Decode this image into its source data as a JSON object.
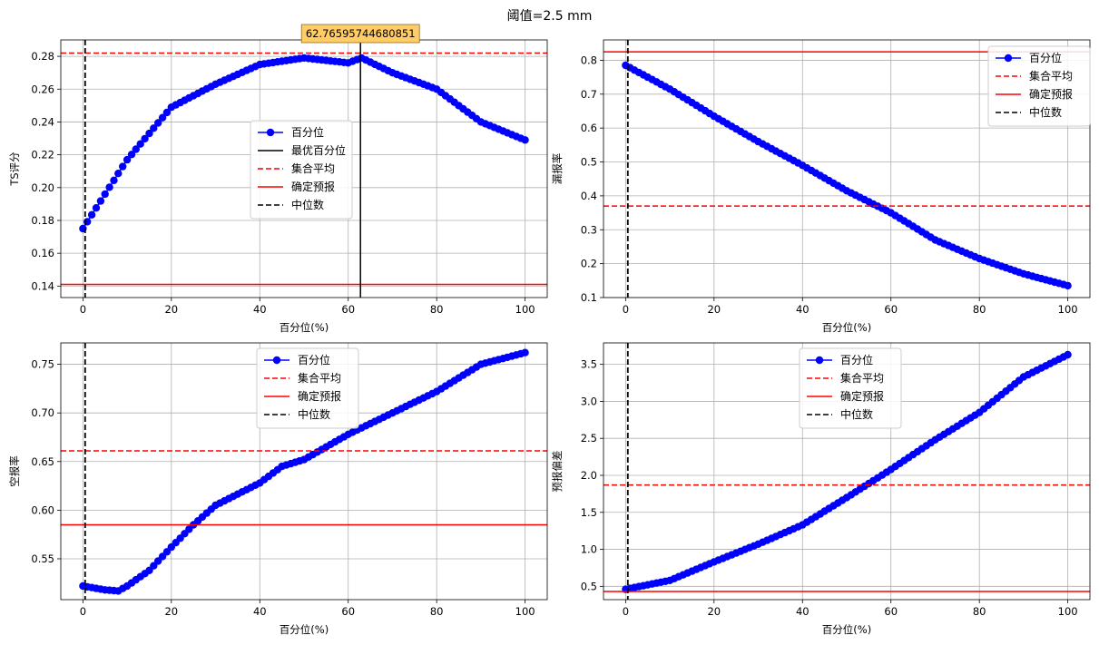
{
  "suptitle": "阈值=2.5 mm",
  "chart_data": [
    {
      "type": "line",
      "ylabel": "TS评分",
      "xlabel": "百分位(%)",
      "xlim": [
        -5,
        105
      ],
      "ylim": [
        0.133,
        0.29
      ],
      "xticks": [
        0,
        20,
        40,
        60,
        80,
        100
      ],
      "xtick_labels": [
        "0",
        "20",
        "40",
        "60",
        "80",
        "100"
      ],
      "yticks": [
        0.14,
        0.16,
        0.18,
        0.2,
        0.22,
        0.24,
        0.26,
        0.28
      ],
      "ytick_labels": [
        "0.14",
        "0.16",
        "0.18",
        "0.20",
        "0.22",
        "0.24",
        "0.26",
        "0.28"
      ],
      "grid": true,
      "legend_location": "center",
      "series": {
        "name": "百分位",
        "color": "#0000ff",
        "x": [
          0,
          10,
          20,
          30,
          40,
          50,
          60,
          63,
          70,
          80,
          90,
          100
        ],
        "y": [
          0.175,
          0.217,
          0.249,
          0.263,
          0.275,
          0.279,
          0.276,
          0.279,
          0.27,
          0.26,
          0.24,
          0.229
        ]
      },
      "reference_lines": {
        "ensemble_mean": {
          "label": "集合平均",
          "value": 0.282,
          "color": "#ff0000",
          "style": "dashed"
        },
        "deterministic": {
          "label": "确定预报",
          "value": 0.141,
          "color": "#ff0000",
          "style": "solid"
        },
        "median": {
          "label": "中位数",
          "x": 0.5,
          "color": "#000000",
          "style": "dashed"
        },
        "optimal": {
          "label": "最优百分位",
          "x": 62.76595744680851,
          "color": "#000000",
          "style": "solid"
        }
      },
      "annotation": {
        "text": "62.76595744680851",
        "background": "#ffcc66"
      },
      "legend": [
        "百分位",
        "最优百分位",
        "集合平均",
        "确定预报",
        "中位数"
      ]
    },
    {
      "type": "line",
      "ylabel": "漏报率",
      "xlabel": "百分位(%)",
      "xlim": [
        -5,
        105
      ],
      "ylim": [
        0.1,
        0.86
      ],
      "xticks": [
        0,
        20,
        40,
        60,
        80,
        100
      ],
      "xtick_labels": [
        "0",
        "20",
        "40",
        "60",
        "80",
        "100"
      ],
      "yticks": [
        0.1,
        0.2,
        0.3,
        0.4,
        0.5,
        0.6,
        0.7,
        0.8
      ],
      "ytick_labels": [
        "0.1",
        "0.2",
        "0.3",
        "0.4",
        "0.5",
        "0.6",
        "0.7",
        "0.8"
      ],
      "grid": true,
      "legend_location": "upper right",
      "series": {
        "name": "百分位",
        "color": "#0000ff",
        "x": [
          0,
          10,
          20,
          30,
          40,
          50,
          60,
          70,
          80,
          90,
          100
        ],
        "y": [
          0.785,
          0.715,
          0.635,
          0.56,
          0.49,
          0.415,
          0.35,
          0.27,
          0.215,
          0.17,
          0.135
        ]
      },
      "reference_lines": {
        "ensemble_mean": {
          "label": "集合平均",
          "value": 0.37,
          "color": "#ff0000",
          "style": "dashed"
        },
        "deterministic": {
          "label": "确定预报",
          "value": 0.825,
          "color": "#ff0000",
          "style": "solid"
        },
        "median": {
          "label": "中位数",
          "x": 0.5,
          "color": "#000000",
          "style": "dashed"
        }
      },
      "legend": [
        "百分位",
        "集合平均",
        "确定预报",
        "中位数"
      ]
    },
    {
      "type": "line",
      "ylabel": "空报率",
      "xlabel": "百分位(%)",
      "xlim": [
        -5,
        105
      ],
      "ylim": [
        0.508,
        0.772
      ],
      "xticks": [
        0,
        20,
        40,
        60,
        80,
        100
      ],
      "xtick_labels": [
        "0",
        "20",
        "40",
        "60",
        "80",
        "100"
      ],
      "yticks": [
        0.55,
        0.6,
        0.65,
        0.7,
        0.75
      ],
      "ytick_labels": [
        "0.55",
        "0.60",
        "0.65",
        "0.70",
        "0.75"
      ],
      "grid": true,
      "legend_location": "upper center",
      "series": {
        "name": "百分位",
        "color": "#0000ff",
        "x": [
          0,
          5,
          8,
          10,
          15,
          20,
          25,
          30,
          40,
          45,
          50,
          60,
          70,
          80,
          90,
          100
        ],
        "y": [
          0.522,
          0.518,
          0.517,
          0.522,
          0.538,
          0.562,
          0.585,
          0.605,
          0.628,
          0.645,
          0.652,
          0.678,
          0.7,
          0.722,
          0.75,
          0.762
        ]
      },
      "reference_lines": {
        "ensemble_mean": {
          "label": "集合平均",
          "value": 0.661,
          "color": "#ff0000",
          "style": "dashed"
        },
        "deterministic": {
          "label": "确定预报",
          "value": 0.585,
          "color": "#ff0000",
          "style": "solid"
        },
        "median": {
          "label": "中位数",
          "x": 0.5,
          "color": "#000000",
          "style": "dashed"
        }
      },
      "legend": [
        "百分位",
        "集合平均",
        "确定预报",
        "中位数"
      ]
    },
    {
      "type": "line",
      "ylabel": "预报偏差",
      "xlabel": "百分位(%)",
      "xlim": [
        -5,
        105
      ],
      "ylim": [
        0.32,
        3.79
      ],
      "xticks": [
        0,
        20,
        40,
        60,
        80,
        100
      ],
      "xtick_labels": [
        "0",
        "20",
        "40",
        "60",
        "80",
        "100"
      ],
      "yticks": [
        0.5,
        1.0,
        1.5,
        2.0,
        2.5,
        3.0,
        3.5
      ],
      "ytick_labels": [
        "0.5",
        "1.0",
        "1.5",
        "2.0",
        "2.5",
        "3.0",
        "3.5"
      ],
      "grid": true,
      "legend_location": "upper center",
      "series": {
        "name": "百分位",
        "color": "#0000ff",
        "x": [
          0,
          10,
          20,
          30,
          40,
          50,
          60,
          70,
          80,
          90,
          100
        ],
        "y": [
          0.46,
          0.58,
          0.83,
          1.07,
          1.33,
          1.7,
          2.08,
          2.48,
          2.85,
          3.33,
          3.63
        ]
      },
      "reference_lines": {
        "ensemble_mean": {
          "label": "集合平均",
          "value": 1.87,
          "color": "#ff0000",
          "style": "dashed"
        },
        "deterministic": {
          "label": "确定预报",
          "value": 0.43,
          "color": "#ff0000",
          "style": "solid"
        },
        "median": {
          "label": "中位数",
          "x": 0.5,
          "color": "#000000",
          "style": "dashed"
        }
      },
      "legend": [
        "百分位",
        "集合平均",
        "确定预报",
        "中位数"
      ]
    }
  ]
}
